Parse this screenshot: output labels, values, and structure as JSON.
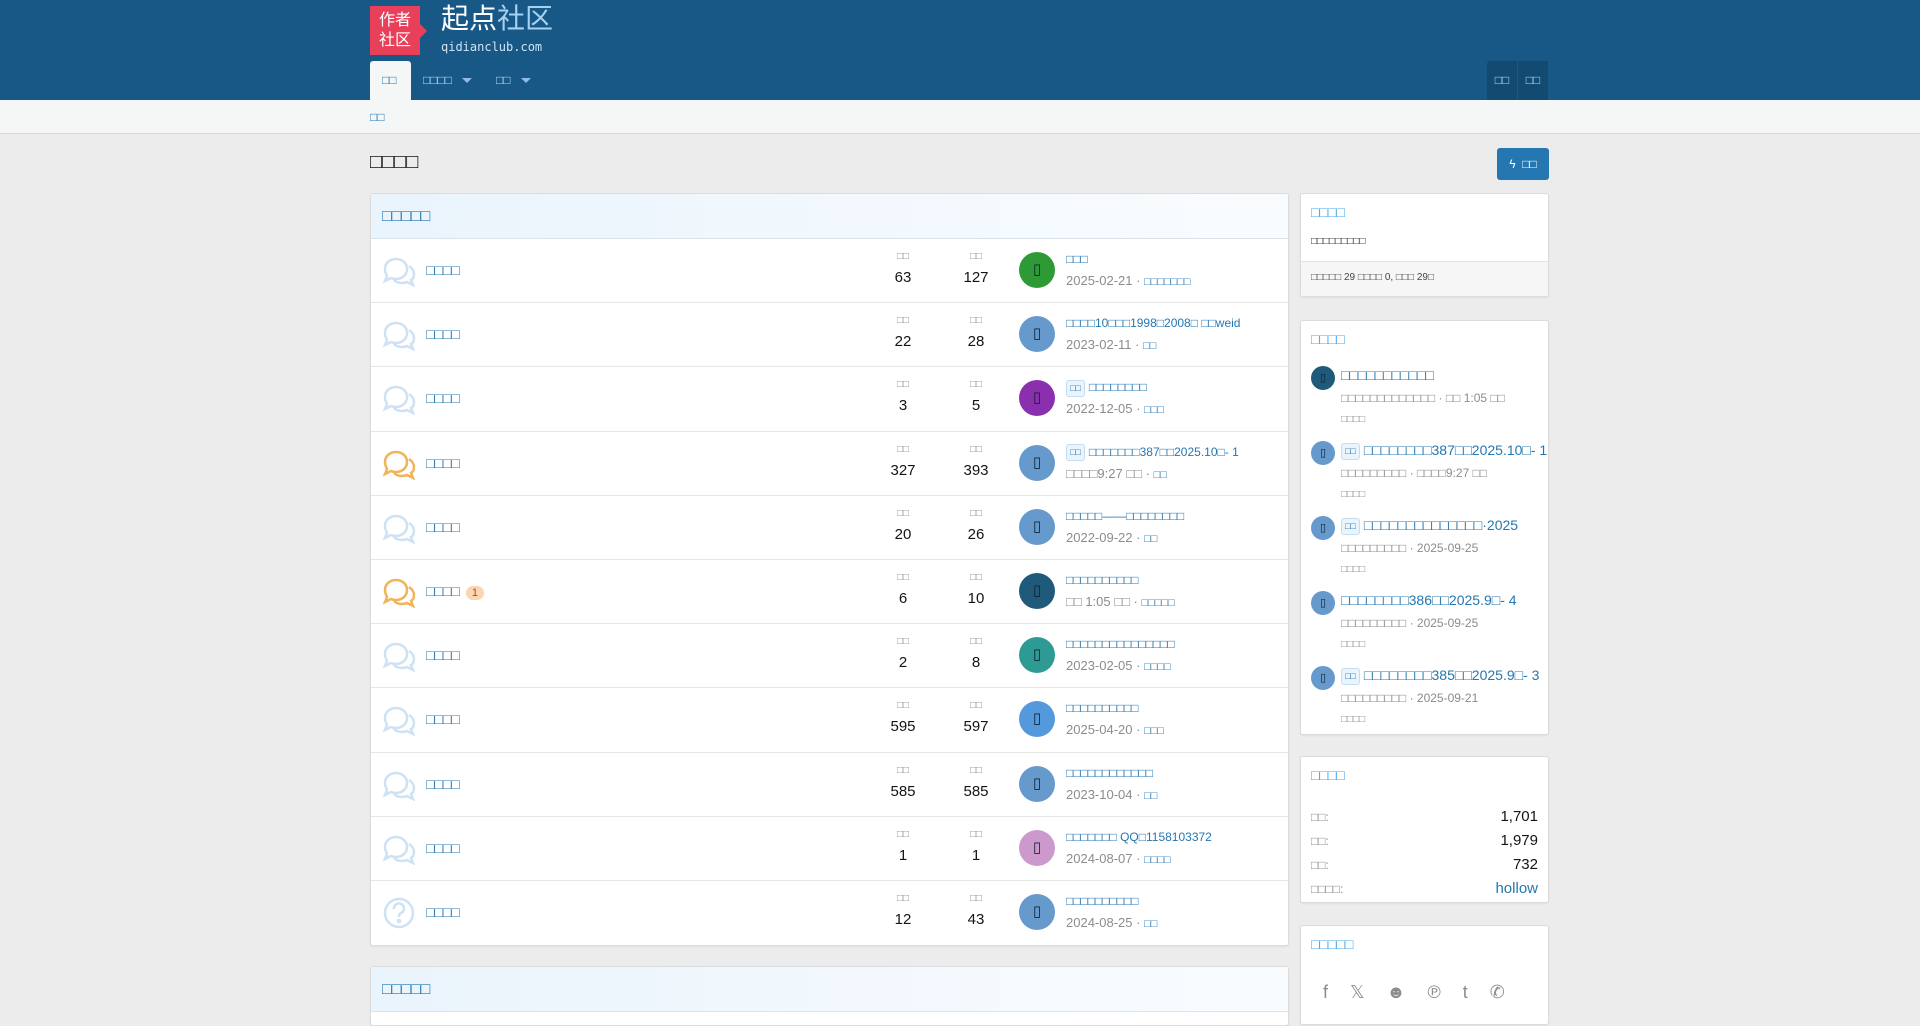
{
  "header": {
    "logo_text": [
      "作者",
      "社区"
    ],
    "site_name_a": "起点",
    "site_name_b": "社区",
    "domain": "qidianclub.com",
    "nav": [
      {
        "label": "□□",
        "active": true
      },
      {
        "label": "□□□□",
        "caret": true
      },
      {
        "label": "□□",
        "caret": true
      }
    ],
    "user_buttons": [
      "□□",
      "□□"
    ]
  },
  "breadcrumb": "□□",
  "page_title": "□□□□",
  "new_button": {
    "icon": "bolt-icon",
    "label": "□□"
  },
  "colors": {
    "header": "#185886",
    "accent": "#2577b1",
    "logo": "#e8405a"
  },
  "category": {
    "title": "□□□□□",
    "stat_labels": [
      "□□",
      "□□"
    ],
    "forums": [
      {
        "name": "□□□□",
        "icon": "chat-bubbles-icon",
        "unread": false,
        "threads": "63",
        "messages": "127",
        "avatar_color": "#2e9a35",
        "latest_title": "□□□",
        "prefix": "",
        "latest_date": "2025-02-21",
        "latest_user": "□□□□□□□"
      },
      {
        "name": "□□□□",
        "icon": "chat-bubbles-icon",
        "unread": false,
        "threads": "22",
        "messages": "28",
        "avatar_color": "#6699cc",
        "latest_title": "□□□□10□□□1998□2008□ □□weid",
        "prefix": "",
        "latest_date": "2023-02-11",
        "latest_user": "□□"
      },
      {
        "name": "□□□□",
        "icon": "chat-bubbles-icon",
        "unread": false,
        "threads": "3",
        "messages": "5",
        "avatar_color": "#8a2fae",
        "latest_title": "□□□□□□□□",
        "prefix": "□□",
        "latest_date": "2022-12-05",
        "latest_user": "□□□"
      },
      {
        "name": "□□□□",
        "icon": "chat-bubbles-icon",
        "unread": true,
        "threads": "327",
        "messages": "393",
        "avatar_color": "#6699cc",
        "latest_title": "□□□□□□□387□□2025.10□- 1",
        "prefix": "□□",
        "latest_date": "□□□□9:27 □□",
        "latest_user": "□□"
      },
      {
        "name": "□□□□",
        "icon": "chat-bubbles-icon",
        "unread": false,
        "threads": "20",
        "messages": "26",
        "avatar_color": "#6699cc",
        "latest_title": "□□□□□——□□□□□□□□",
        "prefix": "",
        "latest_date": "2022-09-22",
        "latest_user": "□□"
      },
      {
        "name": "□□□□",
        "icon": "chat-bubbles-icon",
        "unread": true,
        "badge": "1",
        "threads": "6",
        "messages": "10",
        "avatar_color": "#1f5a7a",
        "latest_title": "□□□□□□□□□□",
        "prefix": "",
        "latest_date": "□□ 1:05 □□",
        "latest_user": "□□□□□"
      },
      {
        "name": "□□□□",
        "icon": "chat-bubbles-icon",
        "unread": false,
        "threads": "2",
        "messages": "8",
        "avatar_color": "#2e9a94",
        "latest_title": "□□□□□□□□□□□□□□□",
        "prefix": "",
        "latest_date": "2023-02-05",
        "latest_user": "□□□□"
      },
      {
        "name": "□□□□",
        "icon": "chat-bubbles-icon",
        "unread": false,
        "threads": "595",
        "messages": "597",
        "avatar_color": "#5599dd",
        "latest_title": "□□□□□□□□□□",
        "prefix": "",
        "latest_date": "2025-04-20",
        "latest_user": "□□□"
      },
      {
        "name": "□□□□",
        "icon": "chat-bubbles-icon",
        "unread": false,
        "threads": "585",
        "messages": "585",
        "avatar_color": "#6699cc",
        "latest_title": "□□□□□□□□□□□□",
        "prefix": "",
        "latest_date": "2023-10-04",
        "latest_user": "□□"
      },
      {
        "name": "□□□□",
        "icon": "chat-bubbles-icon",
        "unread": false,
        "threads": "1",
        "messages": "1",
        "avatar_color": "#cc99cc",
        "latest_title": "□□□□□□□ QQ□1158103372",
        "prefix": "",
        "latest_date": "2024-08-07",
        "latest_user": "□□□□"
      },
      {
        "name": "□□□□",
        "icon": "question-circle-icon",
        "unread": false,
        "threads": "12",
        "messages": "43",
        "avatar_color": "#6699cc",
        "latest_title": "□□□□□□□□□□",
        "prefix": "",
        "latest_date": "2024-08-25",
        "latest_user": "□□"
      }
    ]
  },
  "category2": {
    "title": "□□□□□"
  },
  "sidebar": {
    "online": {
      "title": "□□□□",
      "text": "□□□□□□□□□",
      "summary": "□□□□□ 29 □□□□ 0, □□□ 29□"
    },
    "latest": {
      "title": "□□□□",
      "posts": [
        {
          "title": "□□□□□□□□□□□",
          "prefix": "",
          "meta": "□□□□□□□□□□□□□ · □□ 1:05 □□",
          "forum": "□□□□",
          "avatar_color": "#1f5a7a"
        },
        {
          "title": "□□□□□□□□387□□2025.10□- 1",
          "prefix": "□□",
          "meta": "□□□□□□□□□ · □□□□9:27 □□",
          "forum": "□□□□",
          "avatar_color": "#6699cc"
        },
        {
          "title": "□□□□□□□□□□□□□□·2025",
          "prefix": "□□",
          "meta": "□□□□□□□□□ · 2025-09-25",
          "forum": "□□□□",
          "avatar_color": "#6699cc"
        },
        {
          "title": "□□□□□□□□386□□2025.9□- 4",
          "prefix": "",
          "meta": "□□□□□□□□□ · 2025-09-25",
          "forum": "□□□□",
          "avatar_color": "#6699cc"
        },
        {
          "title": "□□□□□□□□385□□2025.9□- 3",
          "prefix": "□□",
          "meta": "□□□□□□□□□ · 2025-09-21",
          "forum": "□□□□",
          "avatar_color": "#6699cc"
        }
      ]
    },
    "stats": {
      "title": "□□□□",
      "rows": [
        {
          "k": "□□:",
          "v": "1,701"
        },
        {
          "k": "□□:",
          "v": "1,979"
        },
        {
          "k": "□□:",
          "v": "732"
        },
        {
          "k": "□□□□:",
          "v": "hollow",
          "link": true
        }
      ]
    },
    "share": {
      "title": "□□□□□",
      "icons": [
        {
          "name": "facebook-icon",
          "glyph": "f"
        },
        {
          "name": "x-icon",
          "glyph": "𝕏"
        },
        {
          "name": "reddit-icon",
          "glyph": "☻"
        },
        {
          "name": "pinterest-icon",
          "glyph": "℗"
        },
        {
          "name": "tumblr-icon",
          "glyph": "t"
        },
        {
          "name": "whatsapp-icon",
          "glyph": "✆"
        }
      ]
    }
  }
}
